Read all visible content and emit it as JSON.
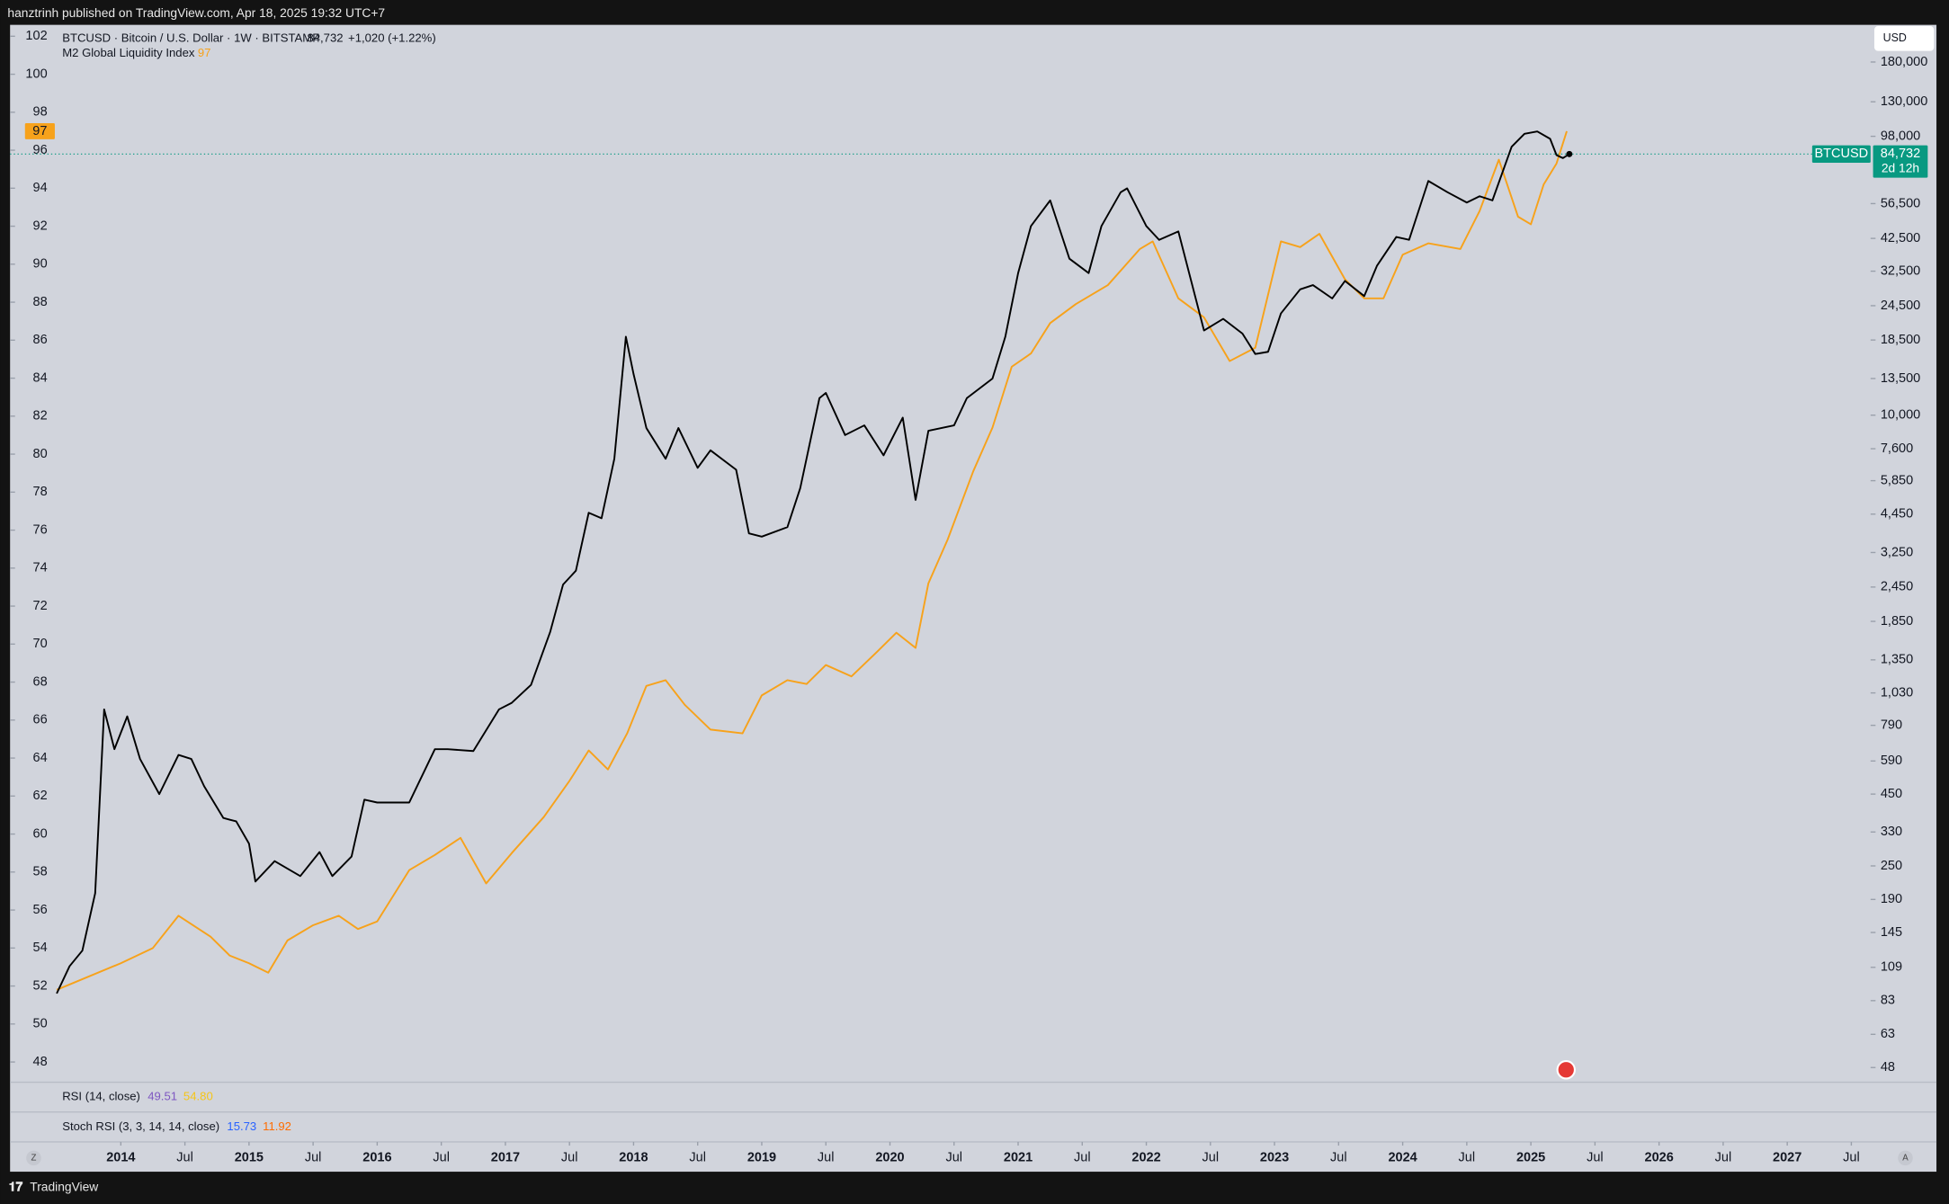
{
  "header": {
    "published": "hanztrinh published on TradingView.com, Apr 18, 2025 19:32 UTC+7"
  },
  "chart_data": {
    "type": "line",
    "currency": "USD",
    "legend_values": {
      "price": "84,732",
      "change": "+1,020 (+1.22%)",
      "countdown": "2d 12h",
      "symbol": "BTCUSD"
    },
    "series": [
      {
        "name": "BTCUSD · Bitcoin / U.S. Dollar · 1W · BITSTAMP",
        "color": "#000000",
        "axis": "y2",
        "x": [
          2013.5,
          2013.6,
          2013.7,
          2013.8,
          2013.87,
          2013.95,
          2014.05,
          2014.15,
          2014.3,
          2014.45,
          2014.55,
          2014.65,
          2014.8,
          2014.9,
          2015.0,
          2015.05,
          2015.2,
          2015.4,
          2015.55,
          2015.65,
          2015.8,
          2015.9,
          2016.0,
          2016.25,
          2016.45,
          2016.55,
          2016.75,
          2016.95,
          2017.05,
          2017.2,
          2017.35,
          2017.45,
          2017.55,
          2017.65,
          2017.75,
          2017.85,
          2017.94,
          2018.0,
          2018.1,
          2018.25,
          2018.35,
          2018.5,
          2018.6,
          2018.8,
          2018.9,
          2019.0,
          2019.2,
          2019.3,
          2019.45,
          2019.5,
          2019.65,
          2019.8,
          2019.95,
          2020.1,
          2020.2,
          2020.3,
          2020.5,
          2020.6,
          2020.8,
          2020.9,
          2021.0,
          2021.1,
          2021.25,
          2021.4,
          2021.55,
          2021.65,
          2021.8,
          2021.85,
          2022.0,
          2022.1,
          2022.25,
          2022.35,
          2022.45,
          2022.6,
          2022.75,
          2022.85,
          2022.95,
          2023.05,
          2023.2,
          2023.3,
          2023.45,
          2023.55,
          2023.7,
          2023.8,
          2023.95,
          2024.05,
          2024.2,
          2024.35,
          2024.5,
          2024.6,
          2024.7,
          2024.85,
          2024.95,
          2025.05,
          2025.15,
          2025.2,
          2025.25,
          2025.3
        ],
        "values": [
          88,
          110,
          125,
          200,
          900,
          650,
          850,
          600,
          450,
          620,
          600,
          480,
          370,
          360,
          300,
          220,
          260,
          230,
          280,
          230,
          270,
          430,
          420,
          420,
          650,
          650,
          640,
          900,
          950,
          1100,
          1700,
          2500,
          2800,
          4500,
          4300,
          7000,
          19000,
          14000,
          9000,
          7000,
          9000,
          6500,
          7500,
          6400,
          3800,
          3700,
          4000,
          5500,
          11500,
          12000,
          8500,
          9200,
          7200,
          9800,
          5000,
          8800,
          9200,
          11500,
          13500,
          19000,
          32000,
          47000,
          58000,
          36000,
          32000,
          47000,
          62000,
          64000,
          47000,
          42000,
          45000,
          30000,
          20000,
          22000,
          19500,
          16500,
          16800,
          23000,
          28000,
          29000,
          26000,
          30000,
          26500,
          34000,
          43000,
          42000,
          68000,
          62000,
          57000,
          60000,
          58000,
          90000,
          100000,
          102000,
          96000,
          84000,
          82000,
          84732
        ]
      },
      {
        "name": "M2 Global Liquidity Index",
        "color": "#f7a21b",
        "axis": "y",
        "x": [
          2013.5,
          2014.0,
          2014.25,
          2014.45,
          2014.7,
          2014.85,
          2015.0,
          2015.15,
          2015.3,
          2015.5,
          2015.7,
          2015.85,
          2016.0,
          2016.25,
          2016.45,
          2016.65,
          2016.85,
          2017.05,
          2017.3,
          2017.5,
          2017.65,
          2017.8,
          2017.95,
          2018.1,
          2018.25,
          2018.4,
          2018.6,
          2018.85,
          2019.0,
          2019.2,
          2019.35,
          2019.5,
          2019.7,
          2019.9,
          2020.05,
          2020.2,
          2020.3,
          2020.45,
          2020.65,
          2020.8,
          2020.95,
          2021.1,
          2021.25,
          2021.45,
          2021.7,
          2021.95,
          2022.05,
          2022.25,
          2022.45,
          2022.65,
          2022.85,
          2023.05,
          2023.2,
          2023.35,
          2023.55,
          2023.7,
          2023.85,
          2024.0,
          2024.2,
          2024.45,
          2024.6,
          2024.75,
          2024.9,
          2025.0,
          2025.1,
          2025.2,
          2025.28
        ],
        "values": [
          51.8,
          53.2,
          54.0,
          55.7,
          54.6,
          53.6,
          53.2,
          52.7,
          54.4,
          55.2,
          55.7,
          55.0,
          55.4,
          58.1,
          58.9,
          59.8,
          57.4,
          59.0,
          60.9,
          62.8,
          64.4,
          63.4,
          65.3,
          67.8,
          68.1,
          66.8,
          65.5,
          65.3,
          67.3,
          68.1,
          67.9,
          68.9,
          68.3,
          69.6,
          70.6,
          69.8,
          73.2,
          75.5,
          79.1,
          81.4,
          84.6,
          85.3,
          86.9,
          87.9,
          88.9,
          90.8,
          91.2,
          88.2,
          87.2,
          84.9,
          85.6,
          91.2,
          90.9,
          91.6,
          89.2,
          88.2,
          88.2,
          90.5,
          91.1,
          90.8,
          92.8,
          95.5,
          92.5,
          92.1,
          94.2,
          95.3,
          97
        ]
      }
    ],
    "xlim": [
      2013.136,
      2027.65
    ],
    "xticks": [
      2014,
      {
        "value": 2014.5,
        "label": "Jul"
      },
      2015,
      {
        "value": 2015.5,
        "label": "Jul"
      },
      2016,
      {
        "value": 2016.5,
        "label": "Jul"
      },
      2017,
      {
        "value": 2017.5,
        "label": "Jul"
      },
      2018,
      {
        "value": 2018.5,
        "label": "Jul"
      },
      2019,
      {
        "value": 2019.5,
        "label": "Jul"
      },
      2020,
      {
        "value": 2020.5,
        "label": "Jul"
      },
      2021,
      {
        "value": 2021.5,
        "label": "Jul"
      },
      2022,
      {
        "value": 2022.5,
        "label": "Jul"
      },
      2023,
      {
        "value": 2023.5,
        "label": "Jul"
      },
      2024,
      {
        "value": 2024.5,
        "label": "Jul"
      },
      2025,
      {
        "value": 2025.5,
        "label": "Jul"
      },
      2026,
      {
        "value": 2026.5,
        "label": "Jul"
      },
      2027,
      {
        "value": 2027.5,
        "label": "Jul"
      }
    ],
    "ylim": [
      47,
      102.6
    ],
    "yticks": [
      48,
      50,
      52,
      54,
      56,
      58,
      60,
      62,
      64,
      66,
      68,
      70,
      72,
      74,
      76,
      78,
      80,
      82,
      84,
      86,
      88,
      90,
      92,
      94,
      96,
      98,
      100,
      102
    ],
    "y2lim": [
      43,
      244000
    ],
    "y2log": true,
    "y2ticks": [
      48,
      63,
      83,
      109,
      145,
      190,
      250,
      330,
      450,
      590,
      790,
      {
        "value": 1030,
        "label": "1,030"
      },
      {
        "value": 1350,
        "label": "1,350"
      },
      {
        "value": 1850,
        "label": "1,850"
      },
      {
        "value": 2450,
        "label": "2,450"
      },
      {
        "value": 3250,
        "label": "3,250"
      },
      {
        "value": 4450,
        "label": "4,450"
      },
      {
        "value": 5850,
        "label": "5,850"
      },
      {
        "value": 7600,
        "label": "7,600"
      },
      {
        "value": 10000,
        "label": "10,000"
      },
      {
        "value": 13500,
        "label": "13,500"
      },
      {
        "value": 18500,
        "label": "18,500"
      },
      {
        "value": 24500,
        "label": "24,500"
      },
      {
        "value": 32500,
        "label": "32,500"
      },
      {
        "value": 42500,
        "label": "42,500"
      },
      {
        "value": 56500,
        "label": "56,500"
      },
      {
        "value": 98000,
        "label": "98,000"
      },
      {
        "value": 130000,
        "label": "130,000"
      },
      {
        "value": 180000,
        "label": "180,000"
      }
    ],
    "grid": false,
    "panes": [
      {
        "name": "RSI (14, close)",
        "values": [
          "49.51",
          "54.80"
        ],
        "colors": [
          "#7e57c2",
          "#f5c518"
        ]
      },
      {
        "name": "Stoch RSI (3, 3, 14, 14, close)",
        "values": [
          "15.73",
          "11.92"
        ],
        "colors": [
          "#2962ff",
          "#ff6d00"
        ]
      }
    ],
    "scale_buttons": [
      "Z",
      "A"
    ]
  },
  "footer": {
    "brand": "TradingView"
  }
}
